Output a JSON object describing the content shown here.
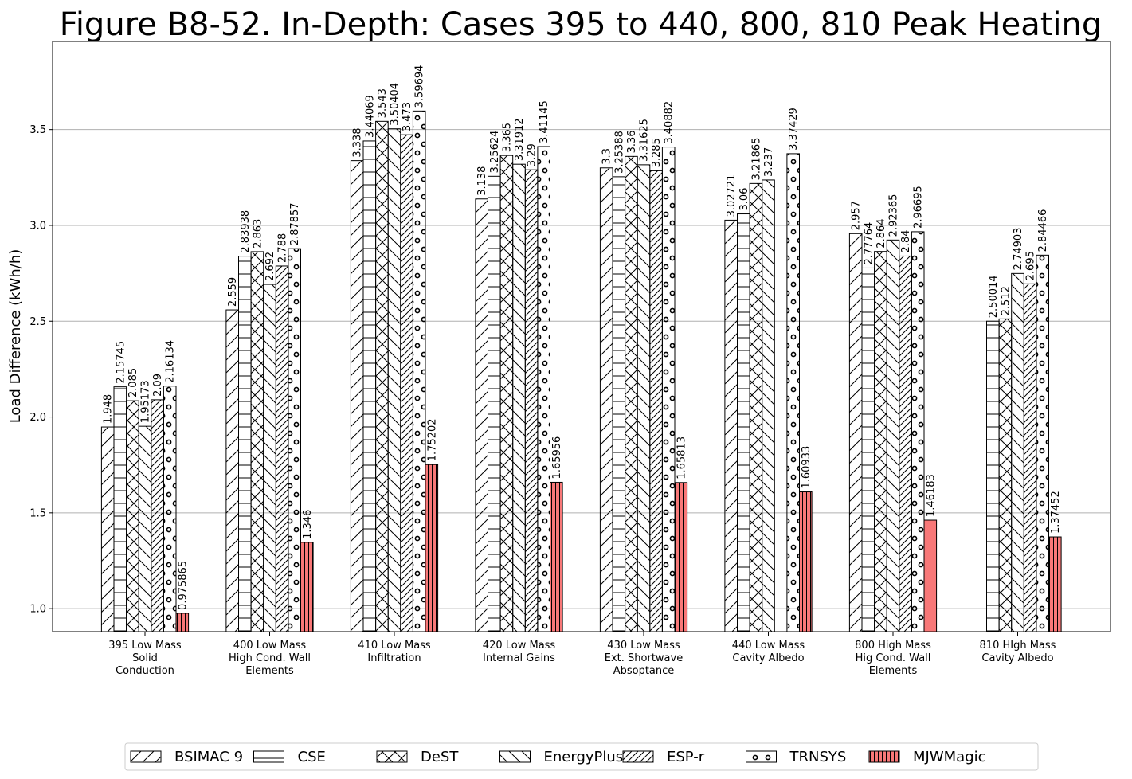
{
  "chart_data": {
    "type": "bar",
    "title": "Figure B8-52. In-Depth: Cases 395 to 440, 800, 810 Peak Heating",
    "xlabel": "",
    "ylabel": "Load Difference (kWh/h)",
    "ylim": [
      0.88,
      3.96
    ],
    "yticks": [
      "1.0",
      "1.5",
      "2.0",
      "2.5",
      "3.0",
      "3.5"
    ],
    "grid": "horizontal",
    "legend_position": "bottom",
    "categories": [
      "395 Low Mass\nSolid\nConduction",
      "400 Low Mass\nHigh Cond. Wall\nElements",
      "410 Low Mass\nInfiltration",
      "420 Low Mass\nInternal Gains",
      "430 Low Mass\nExt. Shortwave\nAbsoptance",
      "440 Low Mass\nCavity Albedo",
      "800 High Mass\nHig Cond. Wall\nElements",
      "810 HIgh Mass\nCavity Albedo"
    ],
    "series": [
      {
        "name": "BSIMAC 9",
        "pattern": "diag",
        "color": "#ffffff",
        "values": [
          1.948,
          2.559,
          3.338,
          3.138,
          3.3,
          3.02721,
          2.957,
          null
        ],
        "labels": [
          "1.948",
          "2.559",
          "3.338",
          "3.138",
          "3.3",
          "3.02721",
          "2.957",
          ""
        ]
      },
      {
        "name": "CSE",
        "pattern": "horiz",
        "color": "#ffffff",
        "values": [
          2.15745,
          2.83938,
          3.44069,
          3.25624,
          3.25388,
          3.06,
          2.77764,
          2.50014
        ],
        "labels": [
          "2.15745",
          "2.83938",
          "3.44069",
          "3.25624",
          "3.25388",
          "3.06",
          "2.77764",
          "2.50014"
        ]
      },
      {
        "name": "DeST",
        "pattern": "cross",
        "color": "#ffffff",
        "values": [
          2.085,
          2.863,
          3.543,
          3.365,
          3.36,
          3.21865,
          2.864,
          2.512
        ],
        "labels": [
          "2.085",
          "2.863",
          "3.543",
          "3.365",
          "3.36",
          "3.21865",
          "2.864",
          "2.512"
        ]
      },
      {
        "name": "EnergyPlus",
        "pattern": "backdiag",
        "color": "#ffffff",
        "values": [
          1.95173,
          2.692,
          3.50404,
          3.31912,
          3.31625,
          3.237,
          2.92365,
          2.74903
        ],
        "labels": [
          "1.95173",
          "2.692",
          "3.50404",
          "3.31912",
          "3.31625",
          "3.237",
          "2.92365",
          "2.74903"
        ]
      },
      {
        "name": "ESP-r",
        "pattern": "dense-diag",
        "color": "#ffffff",
        "values": [
          2.09,
          2.788,
          3.473,
          3.29,
          3.285,
          null,
          2.84,
          2.695
        ],
        "labels": [
          "2.09",
          "2.788",
          "3.473",
          "3.29",
          "3.285",
          "",
          "2.84",
          "2.695"
        ]
      },
      {
        "name": "TRNSYS",
        "pattern": "circles",
        "color": "#ffffff",
        "values": [
          2.16134,
          2.87857,
          3.59694,
          3.41145,
          3.40882,
          3.37429,
          2.96695,
          2.84466
        ],
        "labels": [
          "2.16134",
          "2.87857",
          "3.59694",
          "3.41145",
          "3.40882",
          "3.37429",
          "2.96695",
          "2.84466"
        ]
      },
      {
        "name": "MJWMagic",
        "pattern": "vert",
        "color": "#f87878",
        "values": [
          0.975865,
          1.346,
          1.75202,
          1.65956,
          1.65813,
          1.60933,
          1.46183,
          1.37452
        ],
        "labels": [
          "0.975865",
          "1.346",
          "1.75202",
          "1.65956",
          "1.65813",
          "1.60933",
          "1.46183",
          "1.37452"
        ]
      }
    ]
  }
}
